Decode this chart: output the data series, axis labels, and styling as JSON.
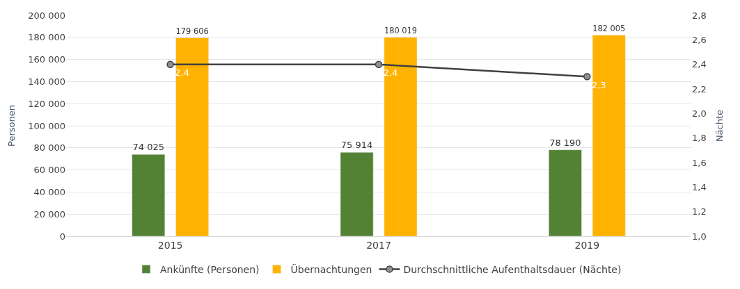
{
  "chart_data": {
    "type": "bar",
    "categories": [
      "2015",
      "2017",
      "2019"
    ],
    "ylabel": "Personen",
    "y2label": "Nächte",
    "series": [
      {
        "name": "Ankünfte (Personen)",
        "color": "#548235",
        "values": [
          74025,
          75914,
          78190
        ],
        "value_labels": [
          "74 025",
          "75 914",
          "78 190"
        ]
      },
      {
        "name": "Übernachtungen",
        "color": "#ffb300",
        "values": [
          179606,
          180019,
          182005
        ],
        "value_labels": [
          "179 606",
          "180 019",
          "182 005"
        ]
      },
      {
        "name": "Durchschnittliche Aufenthaltsdauer (Nächte)",
        "type": "line",
        "axis": "y2",
        "color": "#404040",
        "marker": "circle",
        "values": [
          2.4,
          2.4,
          2.3
        ],
        "value_labels": [
          "2,4",
          "2,4",
          "2,3"
        ]
      }
    ],
    "ylim": [
      0,
      200000
    ],
    "yticks": [
      0,
      {
        "value": 20000,
        "label": "20 000"
      },
      {
        "value": 40000,
        "label": "40 000"
      },
      {
        "value": 60000,
        "label": "60 000"
      },
      {
        "value": 80000,
        "label": "80 000"
      },
      {
        "value": 100000,
        "label": "100 000"
      },
      {
        "value": 120000,
        "label": "120 000"
      },
      {
        "value": 140000,
        "label": "140 000"
      },
      {
        "value": 160000,
        "label": "160 000"
      },
      {
        "value": 180000,
        "label": "180 000"
      },
      {
        "value": 200000,
        "label": "200 000"
      }
    ],
    "y2lim": [
      1.0,
      2.8
    ],
    "y2ticks": [
      {
        "value": 1.0,
        "label": "1,0"
      },
      {
        "value": 1.2,
        "label": "1,2"
      },
      {
        "value": 1.4,
        "label": "1,4"
      },
      {
        "value": 1.6,
        "label": "1,6"
      },
      {
        "value": 1.8,
        "label": "1,8"
      },
      {
        "value": 2.0,
        "label": "2,0"
      },
      {
        "value": 2.2,
        "label": "2,2"
      },
      {
        "value": 2.4,
        "label": "2,4"
      },
      {
        "value": 2.6,
        "label": "2,6"
      },
      {
        "value": 2.8,
        "label": "2,8"
      }
    ],
    "grid": "y",
    "legend": "bottom"
  }
}
